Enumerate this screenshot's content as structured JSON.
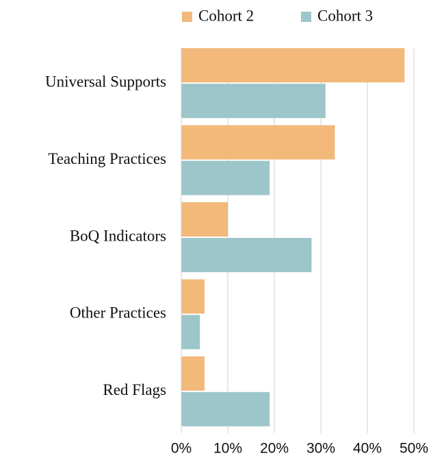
{
  "chart_data": {
    "type": "hbar",
    "categories": [
      "Universal Supports",
      "Teaching Practices",
      "BoQ Indicators",
      "Other  Practices",
      "Red Flags"
    ],
    "series": [
      {
        "name": "Cohort 2",
        "color": "#f2b97a",
        "values": [
          48,
          33,
          10,
          5,
          5
        ]
      },
      {
        "name": "Cohort 3",
        "color": "#9cc6c9",
        "values": [
          31,
          19,
          28,
          4,
          19
        ]
      }
    ],
    "xlim": [
      0,
      50
    ],
    "xticks": [
      {
        "value": 0,
        "label": "0%"
      },
      {
        "value": 10,
        "label": "10%"
      },
      {
        "value": 20,
        "label": "20%"
      },
      {
        "value": 30,
        "label": "30%"
      },
      {
        "value": 40,
        "label": "40%"
      },
      {
        "value": 50,
        "label": "50%"
      }
    ],
    "grid": true,
    "legend": "top"
  }
}
